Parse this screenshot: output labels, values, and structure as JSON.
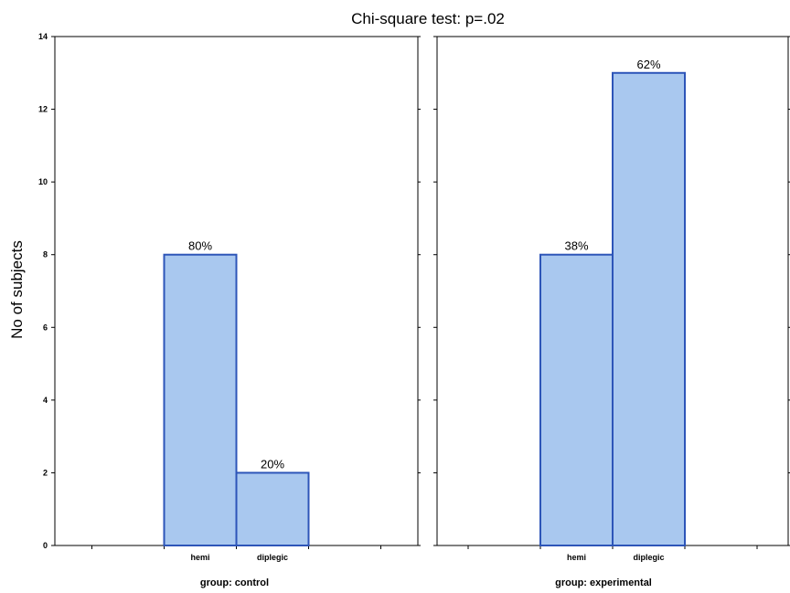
{
  "chart_data": {
    "type": "bar",
    "title": "Chi-square test: p=.02",
    "ylabel": "No of subjects",
    "ylim": [
      0,
      14
    ],
    "yticks": [
      0,
      2,
      4,
      6,
      8,
      10,
      12,
      14
    ],
    "categories": [
      "hemi",
      "diplegic"
    ],
    "bar_color": "#a9c8ef",
    "bar_edge_color": "#2d55b8",
    "panels": [
      {
        "label": "group: control",
        "values": [
          8,
          2
        ],
        "data_labels": [
          "80%",
          "20%"
        ]
      },
      {
        "label": "group: experimental",
        "values": [
          8,
          13
        ],
        "data_labels": [
          "38%",
          "62%"
        ]
      }
    ]
  }
}
